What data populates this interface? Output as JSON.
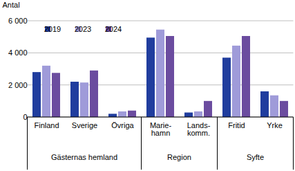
{
  "chart_data": {
    "type": "bar",
    "y_label": "Antal",
    "categories": [
      "Finland",
      "Sverige",
      "Övriga",
      "Marie-\nhamn",
      "Lands-\nkomm.",
      "Fritid",
      "Yrke"
    ],
    "groups": [
      {
        "label": "Gästernas hemland",
        "size": 3
      },
      {
        "label": "Region",
        "size": 2
      },
      {
        "label": "Syfte",
        "size": 2
      }
    ],
    "series": [
      {
        "name": "2019",
        "color": "#203d9e",
        "values": [
          2800,
          2200,
          200,
          4950,
          280,
          3700,
          1600
        ]
      },
      {
        "name": "2023",
        "color": "#9f9bd9",
        "values": [
          3200,
          2150,
          350,
          5450,
          350,
          4450,
          1350
        ]
      },
      {
        "name": "2024",
        "color": "#6b4c9f",
        "values": [
          2750,
          2900,
          400,
          5050,
          1000,
          5050,
          1000
        ]
      }
    ],
    "ylim": [
      0,
      6000
    ],
    "yticks": [
      0,
      {
        "value": 2000,
        "label": "2 000"
      },
      {
        "value": 4000,
        "label": "4 000"
      },
      {
        "value": 6000,
        "label": "6 000"
      }
    ],
    "grid": true,
    "legend": "top-left"
  }
}
